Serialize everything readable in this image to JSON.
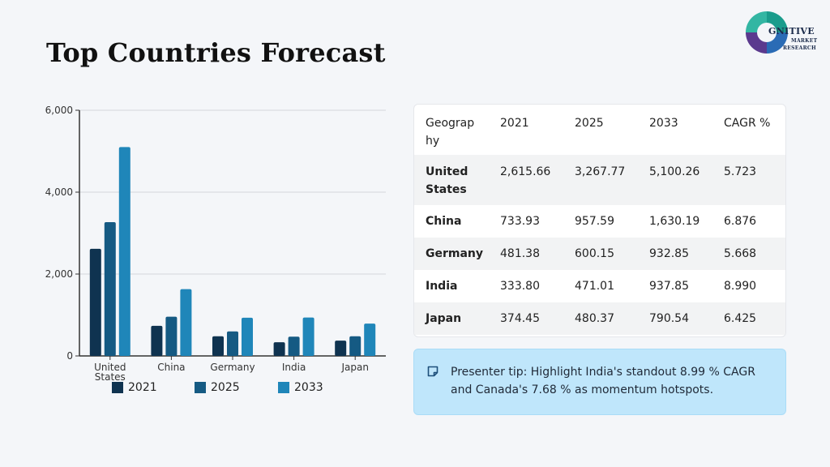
{
  "title": "Top Countries Forecast",
  "logo": {
    "text": "GNITIVE",
    "sub1": "MARKET",
    "sub2": "RESEARCH"
  },
  "chart_data": {
    "type": "bar",
    "categories": [
      "United States",
      "China",
      "Germany",
      "India",
      "Japan"
    ],
    "series": [
      {
        "name": "2021",
        "color": "#0f3350",
        "values": [
          2615.66,
          733.93,
          481.38,
          333.8,
          374.45
        ]
      },
      {
        "name": "2025",
        "color": "#155a83",
        "values": [
          3267.77,
          957.59,
          600.15,
          471.01,
          480.37
        ]
      },
      {
        "name": "2033",
        "color": "#1f86b9",
        "values": [
          5100.26,
          1630.19,
          932.85,
          937.85,
          790.54
        ]
      }
    ],
    "ylim": [
      0,
      6000
    ],
    "yticks": [
      "0",
      "2,000",
      "4,000",
      "6,000"
    ],
    "grid": true,
    "legend_position": "bottom"
  },
  "table": {
    "headers": [
      "Geograp hy",
      "2021",
      "2025",
      "2033",
      "CAGR %"
    ],
    "rows": [
      [
        "United States",
        "2,615.66",
        "3,267.77",
        "5,100.26",
        "5.723"
      ],
      [
        "China",
        "733.93",
        "957.59",
        "1,630.19",
        "6.876"
      ],
      [
        "Germany",
        "481.38",
        "600.15",
        "932.85",
        "5.668"
      ],
      [
        "India",
        "333.80",
        "471.01",
        "937.85",
        "8.990"
      ],
      [
        "Japan",
        "374.45",
        "480.37",
        "790.54",
        "6.425"
      ]
    ]
  },
  "tip": {
    "icon": "note-icon",
    "text": "Presenter tip: Highlight India's standout 8.99 % CAGR and Canada's 7.68 % as momentum hotspots."
  }
}
